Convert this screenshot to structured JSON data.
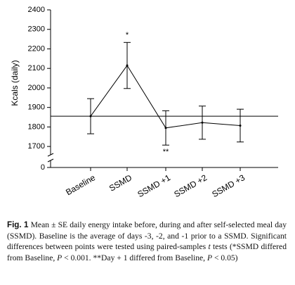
{
  "chart_data": {
    "type": "errorline",
    "y_label": "Kcals (daily)",
    "categories": [
      "Baseline",
      "SSMD",
      "SSMD +1",
      "SSMD +2",
      "SSMD +3"
    ],
    "values": [
      1855,
      2115,
      1795,
      1822,
      1807
    ],
    "errors": [
      90,
      118,
      88,
      85,
      84
    ],
    "annotations": [
      {
        "category": 1,
        "text": "*",
        "position": "above"
      },
      {
        "category": 2,
        "text": "**",
        "position": "below"
      }
    ],
    "reference_line": 1855,
    "color": "#000000",
    "ylim": [
      0,
      2400
    ],
    "axis_break": [
      0,
      1650
    ],
    "yticks": [
      0,
      1700,
      1800,
      1900,
      2000,
      2100,
      2200,
      2300,
      2400
    ]
  },
  "caption": {
    "label": "Fig. 1",
    "parts": [
      {
        "text": " Mean ± SE daily energy intake before, during and after self-selected meal day (SSMD). Baseline is the average of days -3, -2, and -1 prior to a SSMD. Significant differences between points were tested using paired-samples ",
        "italic": false
      },
      {
        "text": "t",
        "italic": true
      },
      {
        "text": " tests (*SSMD differed from Baseline, ",
        "italic": false
      },
      {
        "text": "P",
        "italic": true
      },
      {
        "text": " < 0.001. **Day + 1 differed from Baseline, ",
        "italic": false
      },
      {
        "text": "P",
        "italic": true
      },
      {
        "text": " < 0.05)",
        "italic": false
      }
    ]
  }
}
